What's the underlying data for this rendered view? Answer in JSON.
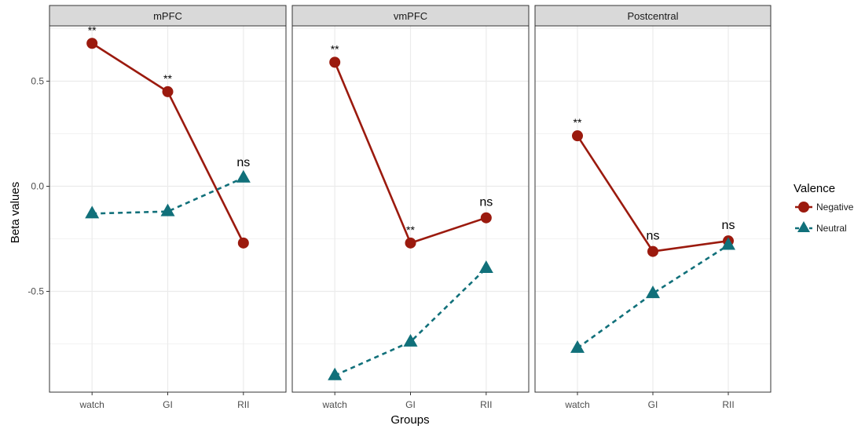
{
  "chart_data": {
    "type": "line",
    "xlabel": "Groups",
    "ylabel": "Beta values",
    "categories": [
      "watch",
      "GI",
      "RII"
    ],
    "ylim": [
      -0.98,
      0.75
    ],
    "yticks": [
      0.5,
      0.0,
      -0.5
    ],
    "ytick_labels": [
      "0.5",
      "0.0",
      "-0.5"
    ],
    "grid": true,
    "legend": {
      "title": "Valence",
      "placement": "right",
      "entries": [
        "Negative",
        "Neutral"
      ]
    },
    "colors": {
      "Negative": "#9b1a0e",
      "Neutral": "#11707a"
    },
    "panels": [
      {
        "title": "mPFC",
        "series": [
          {
            "name": "Negative",
            "values": [
              0.68,
              0.45,
              -0.27
            ]
          },
          {
            "name": "Neutral",
            "values": [
              -0.13,
              -0.12,
              0.04
            ]
          }
        ],
        "annotations": [
          {
            "category": "watch",
            "text": "**"
          },
          {
            "category": "GI",
            "text": "**"
          },
          {
            "category": "RII",
            "text": "ns"
          }
        ]
      },
      {
        "title": "vmPFC",
        "series": [
          {
            "name": "Negative",
            "values": [
              0.59,
              -0.27,
              -0.15
            ]
          },
          {
            "name": "Neutral",
            "values": [
              -0.9,
              -0.74,
              -0.39
            ]
          }
        ],
        "annotations": [
          {
            "category": "watch",
            "text": "**"
          },
          {
            "category": "GI",
            "text": "**"
          },
          {
            "category": "RII",
            "text": "ns"
          }
        ]
      },
      {
        "title": "Postcentral",
        "series": [
          {
            "name": "Negative",
            "values": [
              0.24,
              -0.31,
              -0.26
            ]
          },
          {
            "name": "Neutral",
            "values": [
              -0.77,
              -0.51,
              -0.28
            ]
          }
        ],
        "annotations": [
          {
            "category": "watch",
            "text": "**"
          },
          {
            "category": "GI",
            "text": "ns"
          },
          {
            "category": "RII",
            "text": "ns"
          }
        ]
      }
    ]
  }
}
